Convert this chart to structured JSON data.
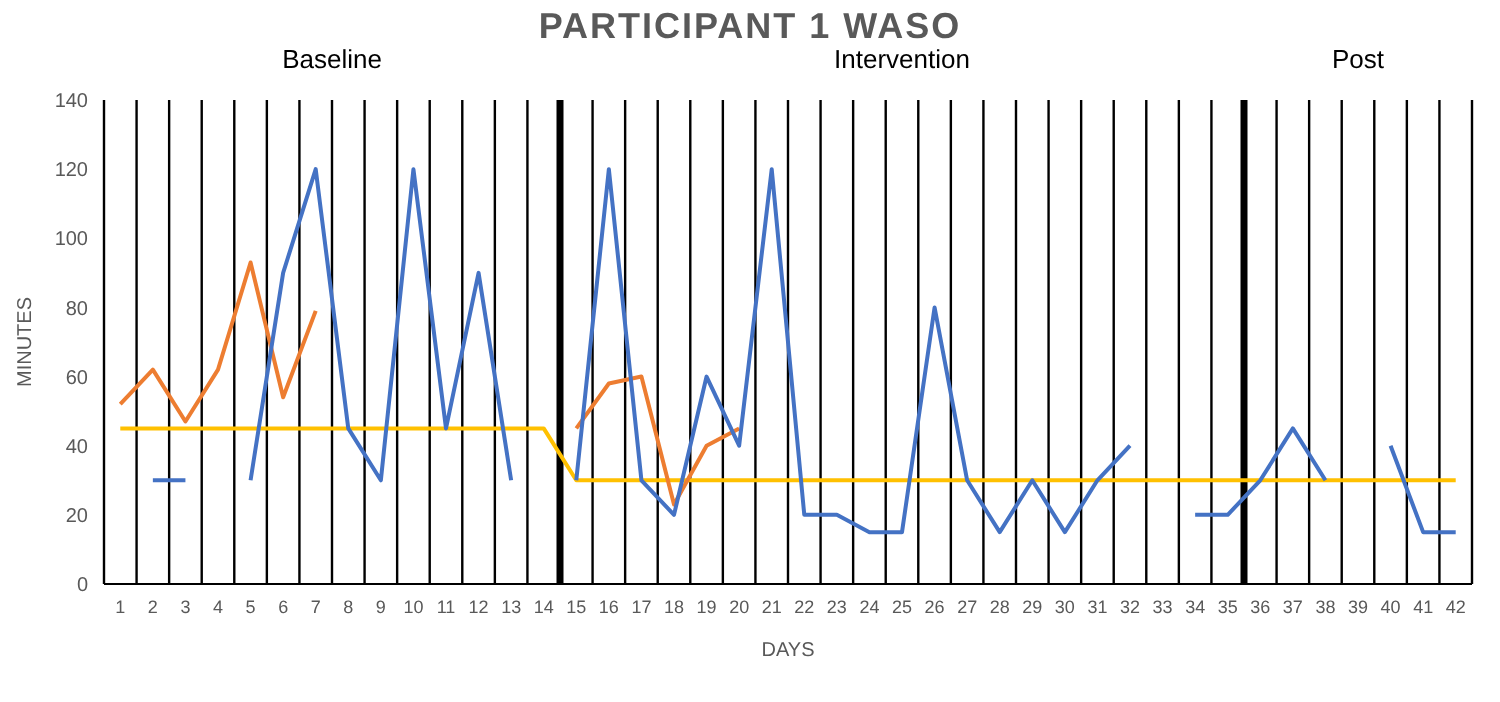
{
  "chart_data": {
    "type": "line",
    "title": "PARTICIPANT 1 WASO",
    "xlabel": "DAYS",
    "ylabel": "MINUTES",
    "x": [
      1,
      2,
      3,
      4,
      5,
      6,
      7,
      8,
      9,
      10,
      11,
      12,
      13,
      14,
      15,
      16,
      17,
      18,
      19,
      20,
      21,
      22,
      23,
      24,
      25,
      26,
      27,
      28,
      29,
      30,
      31,
      32,
      33,
      34,
      35,
      36,
      37,
      38,
      39,
      40,
      41,
      42
    ],
    "xlim": [
      0.5,
      42.5
    ],
    "xticks": [
      1,
      2,
      3,
      4,
      5,
      6,
      7,
      8,
      9,
      10,
      11,
      12,
      13,
      14,
      15,
      16,
      17,
      18,
      19,
      20,
      21,
      22,
      23,
      24,
      25,
      26,
      27,
      28,
      29,
      30,
      31,
      32,
      33,
      34,
      35,
      36,
      37,
      38,
      39,
      40,
      41,
      42
    ],
    "ylim": [
      0,
      140
    ],
    "yticks": [
      0,
      20,
      40,
      60,
      80,
      100,
      120,
      140
    ],
    "series": [
      {
        "color": "#ffc000",
        "values": [
          45,
          45,
          45,
          45,
          45,
          45,
          45,
          45,
          45,
          45,
          45,
          45,
          45,
          45,
          30,
          30,
          30,
          30,
          30,
          30,
          30,
          30,
          30,
          30,
          30,
          30,
          30,
          30,
          30,
          30,
          30,
          30,
          30,
          30,
          30,
          30,
          30,
          30,
          30,
          30,
          30,
          30
        ]
      },
      {
        "color": "#ed7d31",
        "values": [
          52,
          62,
          47,
          62,
          93,
          54,
          79,
          null,
          null,
          null,
          null,
          null,
          null,
          null,
          45,
          58,
          60,
          23,
          40,
          45,
          null,
          null,
          null,
          null,
          null,
          null,
          null,
          null,
          null,
          null,
          null,
          null,
          null,
          null,
          null,
          null,
          null,
          null,
          null,
          null,
          null,
          null
        ]
      },
      {
        "color": "#4472c4",
        "values": [
          null,
          30,
          30,
          null,
          30,
          90,
          120,
          45,
          30,
          120,
          45,
          90,
          30,
          null,
          30,
          120,
          30,
          20,
          60,
          40,
          120,
          20,
          20,
          15,
          15,
          80,
          30,
          15,
          30,
          15,
          30,
          40,
          null,
          20,
          20,
          30,
          45,
          30,
          null,
          40,
          15,
          15
        ]
      }
    ],
    "ref_lines": [
      {
        "axis": "x",
        "value": 14.5,
        "color": "#000000"
      },
      {
        "axis": "x",
        "value": 35.5,
        "color": "#000000"
      }
    ],
    "annotations": [
      "Baseline",
      "Intervention",
      "Post"
    ],
    "grid": "x",
    "marker": "none",
    "line_style": "solid"
  }
}
